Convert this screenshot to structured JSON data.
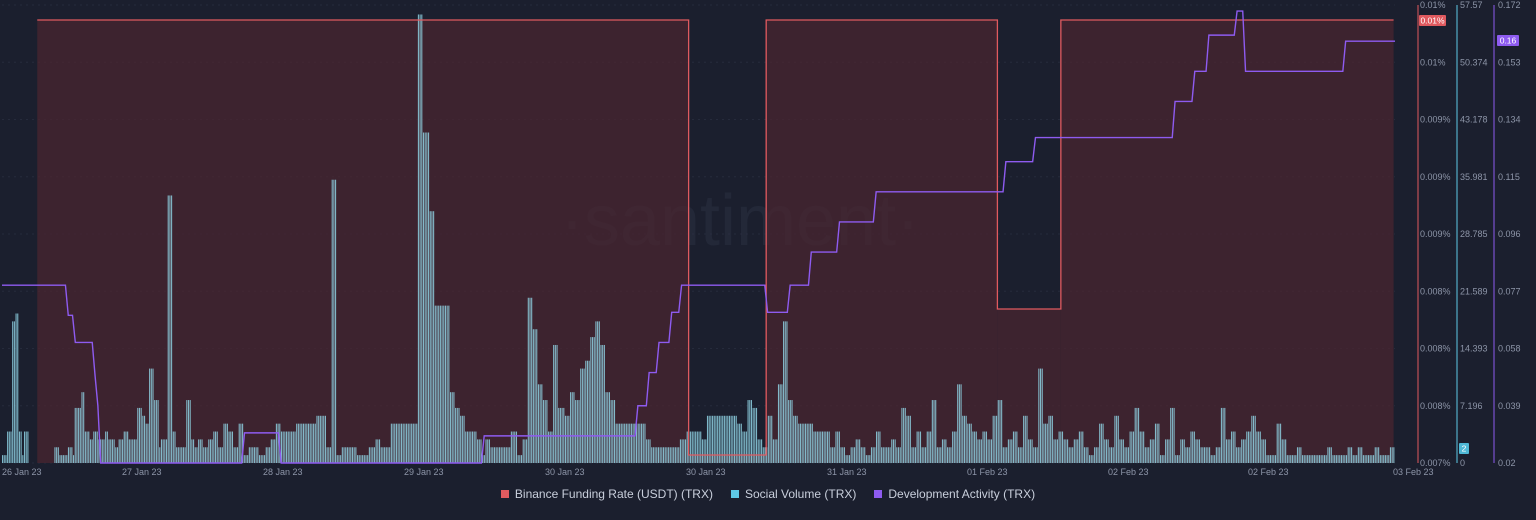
{
  "chart_data": {
    "type": "bar",
    "watermark": "·santiment·",
    "x_ticks": [
      "26 Jan 23",
      "27 Jan 23",
      "28 Jan 23",
      "29 Jan 23",
      "30 Jan 23",
      "30 Jan 23",
      "31 Jan 23",
      "01 Feb 23",
      "02 Feb 23",
      "02 Feb 23",
      "03 Feb 23"
    ],
    "axes": {
      "funding": {
        "ticks": [
          "0.01%",
          "0.01%",
          "0.009%",
          "0.009%",
          "0.009%",
          "0.008%",
          "0.008%",
          "0.008%",
          "0.007%"
        ],
        "badge": "0.01%",
        "color": "#e05a5f"
      },
      "social": {
        "ticks": [
          "57.57",
          "50.374",
          "43.178",
          "35.981",
          "28.785",
          "21.589",
          "14.393",
          "7.196",
          "0"
        ],
        "min": 0,
        "max": 57.57,
        "badge": "2",
        "color": "#5ec8e6"
      },
      "dev": {
        "ticks": [
          "0.172",
          "0.153",
          "0.134",
          "0.115",
          "0.096",
          "0.077",
          "0.058",
          "0.039",
          "0.02"
        ],
        "min": 0.02,
        "max": 0.172,
        "badge": "0.16",
        "color": "#8e5bf0"
      }
    },
    "series": [
      {
        "name": "Binance Funding Rate (USDT) (TRX)",
        "color": "#e05a5f",
        "levels": [
          0.01,
          0.00702,
          0.01,
          0.00802,
          0.01
        ],
        "segment_days": [
          0,
          0.25,
          4.87,
          5.42,
          7.06,
          7.51,
          9.87
        ]
      },
      {
        "name": "Social Volume (TRX)",
        "color": "#5ec8e6",
        "values": [
          1,
          1,
          1,
          4,
          4,
          4,
          18,
          18,
          19,
          19,
          4,
          4,
          1,
          4,
          4,
          4,
          0,
          0,
          0,
          0,
          0,
          0,
          0,
          0,
          0,
          0,
          0,
          0,
          0,
          0,
          0,
          2,
          2,
          2,
          1,
          1,
          1,
          1,
          1,
          2,
          2,
          2,
          1,
          7,
          7,
          7,
          7,
          9,
          9,
          4,
          4,
          4,
          3,
          3,
          4,
          4,
          4,
          3,
          3,
          3,
          3,
          4,
          4,
          3,
          3,
          3,
          3,
          2,
          2,
          3,
          3,
          3,
          4,
          4,
          4,
          3,
          3,
          3,
          3,
          3,
          7,
          7,
          7,
          6,
          6,
          5,
          5,
          12,
          12,
          12,
          8,
          8,
          8,
          2,
          3,
          3,
          3,
          3,
          34,
          34,
          34,
          4,
          4,
          2,
          2,
          2,
          2,
          2,
          2,
          8,
          8,
          8,
          3,
          3,
          2,
          2,
          3,
          3,
          3,
          2,
          2,
          2,
          3,
          3,
          3,
          4,
          4,
          4,
          2,
          2,
          2,
          5,
          5,
          5,
          4,
          4,
          4,
          2,
          2,
          2,
          5,
          5,
          5,
          1,
          1,
          1,
          2,
          2,
          2,
          2,
          2,
          2,
          1,
          1,
          1,
          1,
          2,
          2,
          2,
          3,
          3,
          3,
          5,
          5,
          5,
          4,
          4,
          4,
          4,
          4,
          4,
          4,
          4,
          4,
          5,
          5,
          5,
          5,
          5,
          5,
          5,
          5,
          5,
          5,
          5,
          5,
          6,
          6,
          6,
          6,
          6,
          6,
          2,
          2,
          2,
          36,
          36,
          36,
          1,
          1,
          1,
          2,
          2,
          2,
          2,
          2,
          2,
          2,
          2,
          2,
          1,
          1,
          1,
          1,
          1,
          1,
          1,
          2,
          2,
          2,
          2,
          3,
          3,
          3,
          2,
          2,
          2,
          2,
          2,
          2,
          5,
          5,
          5,
          5,
          5,
          5,
          5,
          5,
          5,
          5,
          5,
          5,
          5,
          5,
          5,
          5,
          57,
          57,
          57,
          42,
          42,
          42,
          42,
          32,
          32,
          32,
          20,
          20,
          20,
          20,
          20,
          20,
          20,
          20,
          20,
          9,
          9,
          9,
          7,
          7,
          7,
          6,
          6,
          6,
          4,
          4,
          4,
          4,
          4,
          4,
          4,
          3,
          3,
          3,
          1,
          1,
          3,
          3,
          3,
          2,
          2,
          2,
          2,
          2,
          2,
          2,
          2,
          2,
          2,
          2,
          2,
          4,
          4,
          4,
          4,
          1,
          1,
          1,
          3,
          3,
          3,
          21,
          21,
          21,
          17,
          17,
          17,
          10,
          10,
          10,
          8,
          8,
          8,
          4,
          4,
          4,
          15,
          15,
          15,
          7,
          7,
          7,
          7,
          6,
          6,
          6,
          9,
          9,
          9,
          8,
          8,
          8,
          12,
          12,
          12,
          13,
          13,
          13,
          16,
          16,
          16,
          18,
          18,
          18,
          15,
          15,
          15,
          9,
          9,
          9,
          8,
          8,
          8,
          5,
          5,
          5,
          5,
          5,
          5,
          5,
          5,
          5,
          5,
          5,
          5,
          5,
          5,
          5,
          5,
          5,
          5,
          3,
          3,
          3,
          2,
          2,
          2,
          2,
          2,
          2,
          2,
          2,
          2,
          2,
          2,
          2,
          2,
          2,
          2,
          2,
          2,
          3,
          3,
          3,
          3,
          4,
          4,
          4,
          4,
          4,
          4,
          4,
          4,
          4,
          3,
          3,
          3,
          6,
          6,
          6,
          6,
          6,
          6,
          6,
          6,
          6,
          6,
          6,
          6,
          6,
          6,
          6,
          6,
          6,
          6,
          5,
          5,
          5,
          4,
          4,
          4,
          8,
          8,
          8,
          7,
          7,
          7,
          3,
          3,
          3,
          2,
          2,
          2,
          6,
          6,
          6,
          3,
          3,
          3,
          10,
          10,
          10,
          18,
          18,
          18,
          8,
          8,
          8,
          6,
          6,
          6,
          5,
          5,
          5,
          5,
          5,
          5,
          5,
          5,
          5,
          4,
          4,
          4,
          4,
          4,
          4,
          4,
          4,
          4,
          4,
          2,
          2,
          2,
          4,
          4,
          4,
          2,
          2,
          2,
          1,
          1,
          1,
          2,
          2,
          2,
          3,
          3,
          3,
          2,
          2,
          2,
          1,
          1,
          1,
          2,
          2,
          2,
          4,
          4,
          4,
          2,
          2,
          2,
          2,
          2,
          2,
          3,
          3,
          3,
          2,
          2,
          2,
          7,
          7,
          7,
          6,
          6,
          6,
          2,
          2,
          2,
          4,
          4,
          4,
          2,
          2,
          2,
          4,
          4,
          4,
          8,
          8,
          8,
          2,
          2,
          2,
          3,
          3,
          3,
          2,
          2,
          2,
          4,
          4,
          4,
          10,
          10,
          10,
          6,
          6,
          6,
          5,
          5,
          5,
          4,
          4,
          4,
          3,
          3,
          3,
          4,
          4,
          4,
          3,
          3,
          3,
          6,
          6,
          6,
          8,
          8,
          8,
          2,
          2,
          2,
          3,
          3,
          3,
          4,
          4,
          4,
          2,
          2,
          2,
          6,
          6,
          6,
          3,
          3,
          3,
          2,
          2,
          2,
          12,
          12,
          12,
          5,
          5,
          5,
          6,
          6,
          6,
          3,
          3,
          3,
          4,
          4,
          4,
          3,
          3,
          3,
          2,
          2,
          2,
          3,
          3,
          3,
          4,
          4,
          4,
          2,
          2,
          2,
          1,
          1,
          1,
          2,
          2,
          2,
          5,
          5,
          5,
          3,
          3,
          3,
          2,
          2,
          2,
          6,
          6,
          6,
          3,
          3,
          3,
          2,
          2,
          2,
          4,
          4,
          4,
          7,
          7,
          7,
          4,
          4,
          4,
          2,
          2,
          2,
          3,
          3,
          3,
          5,
          5,
          5,
          1,
          1,
          1,
          3,
          3,
          3,
          7,
          7,
          7,
          1,
          1,
          1,
          3,
          3,
          3,
          2,
          2,
          2,
          4,
          4,
          4,
          3,
          3,
          3,
          2,
          2,
          2,
          2,
          2,
          2,
          1,
          1,
          1,
          2,
          2,
          2,
          7,
          7,
          7,
          3,
          3,
          3,
          4,
          4,
          4,
          2,
          2,
          2,
          3,
          3,
          3,
          4,
          4,
          4,
          6,
          6,
          6,
          4,
          4,
          4,
          3,
          3,
          3,
          1,
          1,
          1,
          1,
          1,
          1,
          5,
          5,
          5,
          3,
          3,
          3,
          1,
          1,
          1,
          1,
          1,
          1,
          2,
          2,
          2,
          1,
          1,
          1,
          1,
          1,
          1,
          1,
          1,
          1,
          1,
          1,
          1,
          1,
          1,
          1,
          2,
          2,
          2,
          1,
          1,
          1,
          1,
          1,
          1,
          1,
          1,
          1,
          2,
          2,
          2,
          1,
          1,
          1,
          2,
          2,
          2,
          1,
          1,
          1,
          1,
          1,
          1,
          1,
          2,
          2,
          2,
          1,
          1,
          1,
          1,
          1,
          1,
          2,
          2,
          2
        ]
      },
      {
        "name": "Development Activity (TRX)",
        "color": "#8e5bf0",
        "x_days": [
          0,
          0.45,
          0.47,
          0.5,
          0.52,
          0.64,
          0.66,
          0.68,
          0.7,
          1.7,
          1.72,
          1.96,
          1.98,
          3.4,
          3.42,
          4.49,
          4.51,
          4.57,
          4.59,
          4.64,
          4.66,
          4.73,
          4.75,
          4.8,
          4.82,
          5.41,
          5.43,
          5.57,
          5.59,
          5.72,
          5.74,
          5.92,
          5.94,
          6.18,
          6.2,
          7.1,
          7.12,
          7.31,
          7.33,
          8.3,
          8.32,
          8.44,
          8.46,
          8.54,
          8.56,
          8.74,
          8.76,
          8.8,
          8.82,
          9.51,
          9.53,
          9.88
        ],
        "values": [
          0.079,
          0.079,
          0.069,
          0.069,
          0.06,
          0.06,
          0.049,
          0.039,
          0.02,
          0.02,
          0.03,
          0.03,
          0.02,
          0.02,
          0.029,
          0.029,
          0.039,
          0.039,
          0.05,
          0.05,
          0.06,
          0.06,
          0.07,
          0.07,
          0.079,
          0.079,
          0.07,
          0.07,
          0.079,
          0.079,
          0.09,
          0.09,
          0.1,
          0.1,
          0.11,
          0.11,
          0.12,
          0.12,
          0.128,
          0.128,
          0.14,
          0.14,
          0.15,
          0.15,
          0.162,
          0.162,
          0.17,
          0.17,
          0.15,
          0.15,
          0.16,
          0.16
        ]
      }
    ]
  }
}
